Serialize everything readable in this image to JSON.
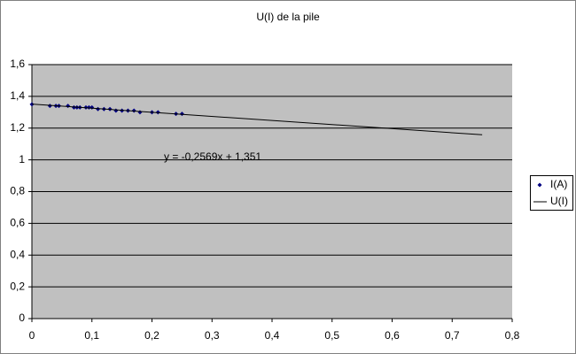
{
  "chart_data": {
    "type": "scatter",
    "title": "U(I)  de la pile",
    "annotation": "y = -0,2569x + 1,351",
    "xlim": [
      0,
      0.8
    ],
    "xticks": [
      0,
      {
        "value": 0.1,
        "label": "0,1"
      },
      {
        "value": 0.2,
        "label": "0,2"
      },
      {
        "value": 0.3,
        "label": "0,3"
      },
      {
        "value": 0.4,
        "label": "0,4"
      },
      {
        "value": 0.5,
        "label": "0,5"
      },
      {
        "value": 0.6,
        "label": "0,6"
      },
      {
        "value": 0.7,
        "label": "0,7"
      },
      {
        "value": 0.8,
        "label": "0,8"
      }
    ],
    "ylim": [
      0,
      1.6
    ],
    "yticks": [
      0,
      {
        "value": 0.2,
        "label": "0,2"
      },
      {
        "value": 0.4,
        "label": "0,4"
      },
      {
        "value": 0.6,
        "label": "0,6"
      },
      {
        "value": 0.8,
        "label": "0,8"
      },
      1,
      {
        "value": 1.2,
        "label": "1,2"
      },
      {
        "value": 1.4,
        "label": "1,4"
      },
      {
        "value": 1.6,
        "label": "1,6"
      }
    ],
    "grid": true,
    "legend": "right",
    "series": [
      {
        "name": "I(A)",
        "type": "markers",
        "color": "#000080",
        "x": [
          0,
          0.03,
          0.04,
          0.045,
          0.06,
          0.07,
          0.075,
          0.08,
          0.09,
          0.095,
          0.1,
          0.11,
          0.12,
          0.13,
          0.14,
          0.15,
          0.16,
          0.17,
          0.18,
          0.2,
          0.21,
          0.24,
          0.25
        ],
        "values": [
          1.35,
          1.34,
          1.34,
          1.34,
          1.34,
          1.33,
          1.33,
          1.33,
          1.33,
          1.33,
          1.33,
          1.32,
          1.32,
          1.32,
          1.31,
          1.31,
          1.31,
          1.31,
          1.3,
          1.3,
          1.3,
          1.29,
          1.29
        ]
      },
      {
        "name": "U(I)",
        "type": "line",
        "color": "#000000",
        "x": [
          0,
          0.75
        ],
        "values": [
          1.351,
          1.158
        ]
      }
    ]
  }
}
